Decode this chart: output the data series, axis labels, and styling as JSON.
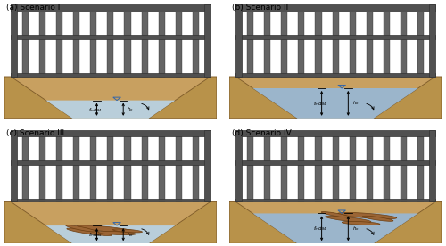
{
  "background_color": "#ffffff",
  "panel_labels": [
    "(a) Scenario I",
    "(b) Scenario II",
    "(c) Scenario III",
    "(d) Scenario IV"
  ],
  "water_color_low": "#b8d4e8",
  "water_color_high": "#96b8d8",
  "ground_color": "#b8924a",
  "ground_side_color": "#a07830",
  "screen_bar_color": "#646464",
  "frame_color": "#505050",
  "frame_light": "#787878",
  "wood_color": "#9b6535",
  "wood_edge": "#6b3d10",
  "annotation_color": "#111111",
  "fig_width": 5.0,
  "fig_height": 2.76,
  "dpi": 100,
  "scenarios": [
    {
      "high_water": false,
      "has_wood": false,
      "wood_at_screen": false
    },
    {
      "high_water": true,
      "has_wood": false,
      "wood_at_screen": false
    },
    {
      "high_water": false,
      "has_wood": true,
      "wood_at_screen": false
    },
    {
      "high_water": true,
      "has_wood": true,
      "wood_at_screen": true
    }
  ]
}
